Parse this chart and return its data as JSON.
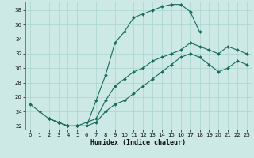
{
  "xlabel": "Humidex (Indice chaleur)",
  "ylabel": "",
  "background_color": "#cce9e5",
  "grid_color": "#aad4d0",
  "line_color": "#1a6b5e",
  "ylim": [
    21.5,
    39.2
  ],
  "xlim": [
    -0.5,
    23.5
  ],
  "yticks": [
    22,
    24,
    26,
    28,
    30,
    32,
    34,
    36,
    38
  ],
  "xticks": [
    0,
    1,
    2,
    3,
    4,
    5,
    6,
    7,
    8,
    9,
    10,
    11,
    12,
    13,
    14,
    15,
    16,
    17,
    18,
    19,
    20,
    21,
    22,
    23
  ],
  "line1_x": [
    0,
    1,
    2,
    3,
    4,
    5,
    6,
    7,
    8,
    9,
    10,
    11,
    12,
    13,
    14,
    15,
    16,
    17,
    18
  ],
  "line1_y": [
    25.0,
    24.0,
    23.0,
    22.5,
    22.0,
    22.0,
    22.0,
    25.5,
    29.0,
    33.5,
    35.0,
    37.0,
    37.5,
    38.0,
    38.5,
    38.8,
    38.8,
    37.8,
    35.0
  ],
  "line2_x": [
    2,
    3,
    4,
    5,
    6,
    7,
    8,
    9,
    10,
    11,
    12,
    13,
    14,
    15,
    16,
    17,
    18,
    19,
    20,
    21,
    22,
    23
  ],
  "line2_y": [
    23.0,
    22.5,
    22.0,
    22.0,
    22.5,
    23.0,
    25.5,
    27.5,
    28.5,
    29.5,
    30.0,
    31.0,
    31.5,
    32.0,
    32.5,
    33.5,
    33.0,
    32.5,
    32.0,
    33.0,
    32.5,
    32.0
  ],
  "line3_x": [
    2,
    3,
    4,
    5,
    6,
    7,
    8,
    9,
    10,
    11,
    12,
    13,
    14,
    15,
    16,
    17,
    18,
    19,
    20,
    21,
    22,
    23
  ],
  "line3_y": [
    23.0,
    22.5,
    22.0,
    22.0,
    22.0,
    22.5,
    24.0,
    25.0,
    25.5,
    26.5,
    27.5,
    28.5,
    29.5,
    30.5,
    31.5,
    32.0,
    31.5,
    30.5,
    29.5,
    30.0,
    31.0,
    30.5
  ]
}
